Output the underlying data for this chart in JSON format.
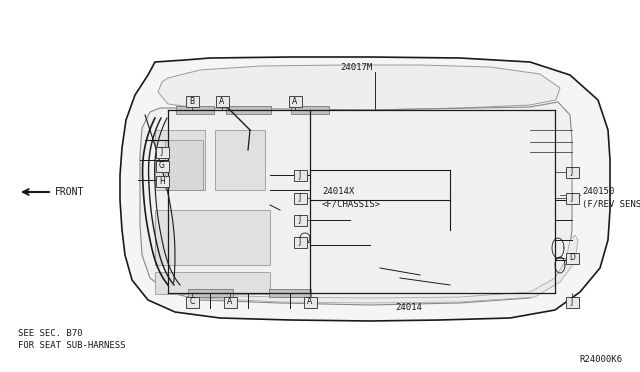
{
  "bg_color": "#ffffff",
  "line_color": "#1a1a1a",
  "gray_color": "#aaaaaa",
  "dark_gray": "#666666",
  "figsize": [
    6.4,
    3.72
  ],
  "dpi": 100,
  "bottom_note_line1": "SEE SEC. B70",
  "bottom_note_line2": "FOR SEAT SUB-HARNESS",
  "ref_code": "R24000K6",
  "label_24017M": "24017M",
  "label_24014X": "24014X",
  "label_fchassis": "<F/CHASSIS>",
  "label_24014": "24014",
  "label_240150": "240150",
  "label_frev": "(F/REV SENS)",
  "label_front": "FRONT"
}
